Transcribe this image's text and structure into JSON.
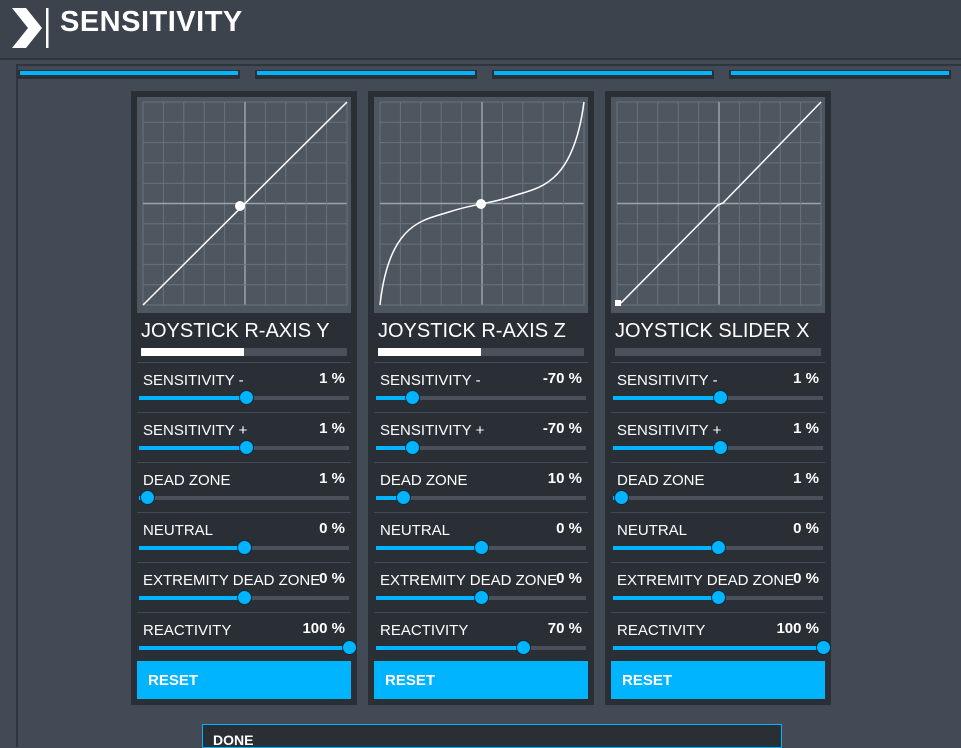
{
  "header": {
    "title": "SENSITIVITY"
  },
  "accent": "#00b4ff",
  "tabs": [
    {
      "label": "",
      "active": true
    },
    {
      "label": "",
      "active": true
    },
    {
      "label": "",
      "active": true
    },
    {
      "label": "",
      "active": true
    }
  ],
  "panels": [
    {
      "name": "JOYSTICK R-AXIS Y",
      "input_level": 0.5,
      "rows": [
        {
          "label": "SENSITIVITY -",
          "value": "1 %",
          "pos": 0.51
        },
        {
          "label": "SENSITIVITY +",
          "value": "1 %",
          "pos": 0.51
        },
        {
          "label": "DEAD ZONE",
          "value": "1 %",
          "pos": 0.04
        },
        {
          "label": "NEUTRAL",
          "value": "0 %",
          "pos": 0.5
        },
        {
          "label": "EXTREMITY DEAD ZONE",
          "value": "0 %",
          "pos": 0.5
        },
        {
          "label": "REACTIVITY",
          "value": "100 %",
          "pos": 1.0
        }
      ],
      "reset_label": "RESET"
    },
    {
      "name": "JOYSTICK R-AXIS Z",
      "input_level": 0.5,
      "rows": [
        {
          "label": "SENSITIVITY -",
          "value": "-70 %",
          "pos": 0.17
        },
        {
          "label": "SENSITIVITY +",
          "value": "-70 %",
          "pos": 0.17
        },
        {
          "label": "DEAD ZONE",
          "value": "10 %",
          "pos": 0.13
        },
        {
          "label": "NEUTRAL",
          "value": "0 %",
          "pos": 0.5
        },
        {
          "label": "EXTREMITY DEAD ZONE",
          "value": "0 %",
          "pos": 0.5
        },
        {
          "label": "REACTIVITY",
          "value": "70 %",
          "pos": 0.7
        }
      ],
      "reset_label": "RESET"
    },
    {
      "name": "JOYSTICK SLIDER X",
      "input_level": 0.0,
      "rows": [
        {
          "label": "SENSITIVITY -",
          "value": "1 %",
          "pos": 0.51
        },
        {
          "label": "SENSITIVITY +",
          "value": "1 %",
          "pos": 0.51
        },
        {
          "label": "DEAD ZONE",
          "value": "1 %",
          "pos": 0.04
        },
        {
          "label": "NEUTRAL",
          "value": "0 %",
          "pos": 0.5
        },
        {
          "label": "EXTREMITY DEAD ZONE",
          "value": "0 %",
          "pos": 0.5
        },
        {
          "label": "REACTIVITY",
          "value": "100 %",
          "pos": 1.0
        }
      ],
      "reset_label": "RESET"
    }
  ],
  "done_label": "DONE"
}
